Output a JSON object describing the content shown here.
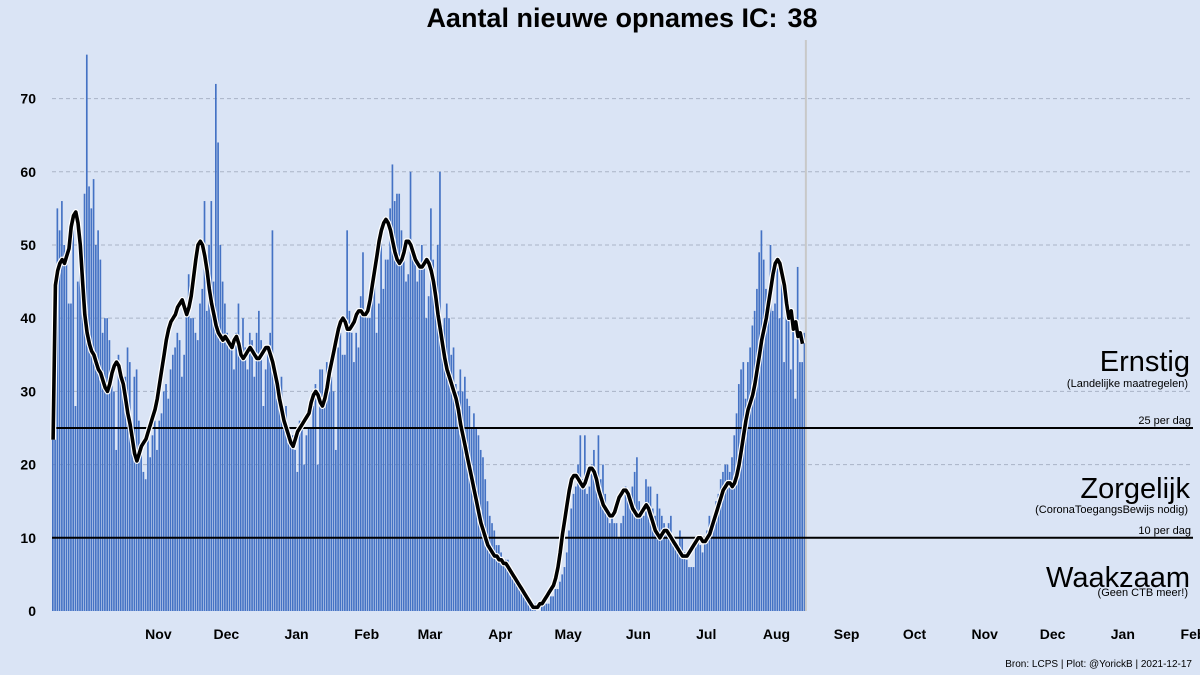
{
  "chart_data": {
    "type": "bar",
    "title_prefix": "Aantal nieuwe opnames IC:",
    "title_value": "38",
    "xlabel": "",
    "ylabel": "",
    "ylim": [
      0,
      78
    ],
    "yticks": [
      0,
      10,
      20,
      30,
      40,
      50,
      60,
      70
    ],
    "x_start_date": "2020-10-12",
    "x_end_date": "2022-02-28",
    "x_ticks": [
      {
        "label": "Nov",
        "day": 33
      },
      {
        "label": "Dec",
        "day": 63
      },
      {
        "label": "Jan",
        "day": 94
      },
      {
        "label": "Feb",
        "day": 125
      },
      {
        "label": "Mar",
        "day": 153
      },
      {
        "label": "Apr",
        "day": 184
      },
      {
        "label": "May",
        "day": 214
      },
      {
        "label": "Jun",
        "day": 245
      },
      {
        "label": "Jul",
        "day": 275
      },
      {
        "label": "Aug",
        "day": 306
      },
      {
        "label": "Sep",
        "day": 337
      },
      {
        "label": "Oct",
        "day": 367
      },
      {
        "label": "Nov",
        "day": 398
      },
      {
        "label": "Dec",
        "day": 428
      },
      {
        "label": "Jan",
        "day": 459
      },
      {
        "label": "Feb",
        "day": 490
      }
    ],
    "grid": true,
    "bar_color": "#4472c4",
    "line_color": "#000000",
    "series": [
      {
        "kind": "bar",
        "start_date": "2020-10-12",
        "values": [
          26,
          43,
          55,
          52,
          56,
          50,
          48,
          42,
          42,
          52,
          28,
          45,
          48,
          46,
          57,
          76,
          58,
          55,
          59,
          50,
          52,
          48,
          38,
          40,
          40,
          37,
          31,
          30,
          22,
          35,
          33,
          30,
          32,
          36,
          34,
          24,
          32,
          33,
          26,
          22,
          19,
          18,
          24,
          21,
          24,
          26,
          22,
          26,
          27,
          30,
          31,
          29,
          33,
          35,
          36,
          38,
          37,
          32,
          35,
          42,
          46,
          40,
          40,
          38,
          37,
          42,
          44,
          56,
          41,
          50,
          56,
          45,
          72,
          64,
          50,
          45,
          42,
          38,
          36,
          37,
          33,
          38,
          42,
          36,
          40,
          36,
          33,
          38,
          37,
          32,
          38,
          41,
          37,
          28,
          33,
          36,
          38,
          52,
          33,
          29,
          28,
          32,
          26,
          28,
          23,
          24,
          24,
          22,
          19,
          26,
          25,
          20,
          24,
          25,
          25,
          28,
          31,
          20,
          33,
          33,
          28,
          34,
          30,
          32,
          30,
          22,
          36,
          38,
          35,
          35,
          52,
          41,
          38,
          34,
          38,
          36,
          43,
          49,
          41,
          40,
          40,
          44,
          45,
          38,
          42,
          52,
          44,
          48,
          48,
          55,
          61,
          56,
          57,
          57,
          52,
          48,
          45,
          46,
          60,
          50,
          49,
          45,
          47,
          50,
          47,
          40,
          43,
          55,
          48,
          45,
          50,
          60,
          39,
          40,
          42,
          40,
          35,
          36,
          31,
          30,
          33,
          30,
          32,
          29,
          28,
          25,
          27,
          25,
          24,
          22,
          21,
          18,
          15,
          13,
          12,
          11,
          9,
          9,
          8,
          7,
          7,
          7,
          6,
          5,
          5,
          4,
          3,
          3,
          2,
          2,
          1,
          1,
          1,
          1,
          0,
          0,
          1,
          1,
          1,
          1,
          2,
          2,
          3,
          3,
          4,
          5,
          6,
          8,
          11,
          14,
          16,
          17,
          20,
          24,
          18,
          24,
          16,
          17,
          20,
          22,
          18,
          24,
          18,
          20,
          16,
          14,
          12,
          13,
          12,
          12,
          10,
          12,
          13,
          17,
          16,
          15,
          17,
          19,
          21,
          15,
          14,
          13,
          18,
          17,
          17,
          14,
          13,
          16,
          14,
          13,
          12,
          11,
          12,
          13,
          10,
          9,
          9,
          11,
          10,
          8,
          7,
          6,
          6,
          6,
          9,
          10,
          9,
          8,
          10,
          11,
          13,
          12,
          13,
          15,
          16,
          18,
          19,
          20,
          20,
          19,
          21,
          24,
          27,
          31,
          33,
          34,
          29,
          34,
          36,
          39,
          41,
          44,
          49,
          52,
          48,
          44,
          43,
          50,
          41,
          42,
          47,
          40,
          46,
          34,
          42,
          40,
          33,
          40,
          29,
          47,
          34,
          34,
          38
        ]
      },
      {
        "kind": "line",
        "name": "",
        "start_date": "2020-10-12",
        "values": [
          23.4,
          44.5,
          46.5,
          47.5,
          48.0,
          47.5,
          48.5,
          49.5,
          52.5,
          54.0,
          54.5,
          53.0,
          50.0,
          45.0,
          40.5,
          38.0,
          36.5,
          35.5,
          35.0,
          34.0,
          33.0,
          32.5,
          31.5,
          30.5,
          30.0,
          31.0,
          32.5,
          33.5,
          34.0,
          33.5,
          32.0,
          31.0,
          29.0,
          27.0,
          25.5,
          23.5,
          21.5,
          20.5,
          21.5,
          22.5,
          23.0,
          23.5,
          24.5,
          25.5,
          26.5,
          27.5,
          29.0,
          31.0,
          33.0,
          35.0,
          37.0,
          38.5,
          39.5,
          40.0,
          40.5,
          41.5,
          42.0,
          42.5,
          41.5,
          40.5,
          41.5,
          43.0,
          45.5,
          48.0,
          50.0,
          50.5,
          50.0,
          48.5,
          46.5,
          44.0,
          42.0,
          40.5,
          39.0,
          38.0,
          37.5,
          37.0,
          37.5,
          37.0,
          36.5,
          36.0,
          37.0,
          37.5,
          36.5,
          35.0,
          34.5,
          35.0,
          35.5,
          36.0,
          35.5,
          35.0,
          34.5,
          34.5,
          35.0,
          35.5,
          36.0,
          36.0,
          35.0,
          34.0,
          32.5,
          31.0,
          29.0,
          27.5,
          26.0,
          25.0,
          24.0,
          23.0,
          22.5,
          23.5,
          24.5,
          25.0,
          25.5,
          26.0,
          26.5,
          27.0,
          28.5,
          29.5,
          30.0,
          29.5,
          28.5,
          28.0,
          29.0,
          30.5,
          32.5,
          34.0,
          35.5,
          37.0,
          38.5,
          39.5,
          40.0,
          39.5,
          38.5,
          38.5,
          39.0,
          39.5,
          40.5,
          41.0,
          41.0,
          40.5,
          40.5,
          41.0,
          42.5,
          44.5,
          46.5,
          48.5,
          50.5,
          52.0,
          53.0,
          53.5,
          53.0,
          52.0,
          50.5,
          49.0,
          48.0,
          47.5,
          48.0,
          49.0,
          50.5,
          50.5,
          50.0,
          49.0,
          48.0,
          47.5,
          47.0,
          47.0,
          47.5,
          48.0,
          47.5,
          46.5,
          45.0,
          43.0,
          40.5,
          38.5,
          36.5,
          34.5,
          33.0,
          32.0,
          31.0,
          30.0,
          29.0,
          27.5,
          25.5,
          24.0,
          22.5,
          21.0,
          19.5,
          18.0,
          16.5,
          15.0,
          13.5,
          12.0,
          11.0,
          10.0,
          9.0,
          8.5,
          8.0,
          7.5,
          7.5,
          7.0,
          7.0,
          6.5,
          6.5,
          6.0,
          5.5,
          5.0,
          4.5,
          4.0,
          3.5,
          3.0,
          2.5,
          2.0,
          1.5,
          1.0,
          0.5,
          0.5,
          0.5,
          1.0,
          1.0,
          1.5,
          2.0,
          2.5,
          3.0,
          3.5,
          4.5,
          6.0,
          8.0,
          10.5,
          12.5,
          14.5,
          16.5,
          18.0,
          18.5,
          18.5,
          18.0,
          17.5,
          17.0,
          17.5,
          18.5,
          19.5,
          19.5,
          19.0,
          18.0,
          16.5,
          15.5,
          14.5,
          14.0,
          13.5,
          13.0,
          13.0,
          13.5,
          14.5,
          15.5,
          16.0,
          16.5,
          16.5,
          16.0,
          15.0,
          14.0,
          13.5,
          13.0,
          13.0,
          13.5,
          14.0,
          14.5,
          14.0,
          13.0,
          12.0,
          11.0,
          10.5,
          10.0,
          10.5,
          11.0,
          11.0,
          10.5,
          10.0,
          9.5,
          9.0,
          8.5,
          8.0,
          7.5,
          7.5,
          7.5,
          8.0,
          8.5,
          9.0,
          9.5,
          10.0,
          10.0,
          9.5,
          9.5,
          10.0,
          10.5,
          11.5,
          12.5,
          13.5,
          14.5,
          15.5,
          16.5,
          17.0,
          17.5,
          17.5,
          17.0,
          17.5,
          18.5,
          20.0,
          22.0,
          24.0,
          26.0,
          27.5,
          28.5,
          29.5,
          31.0,
          33.0,
          35.0,
          37.0,
          38.5,
          40.0,
          42.0,
          44.0,
          46.0,
          47.5,
          48.0,
          47.5,
          46.0,
          44.5,
          42.0,
          40.0,
          41.0,
          38.5,
          39.5,
          37.5,
          38.0,
          36.5
        ]
      }
    ],
    "thresholds": [
      {
        "value": 25,
        "label": "25 per dag"
      },
      {
        "value": 10,
        "label": "10 per dag"
      }
    ],
    "zones": [
      {
        "name": "Ernstig",
        "sub": "(Landelijke maatregelen)"
      },
      {
        "name": "Zorgelijk",
        "sub": "(CoronaToegangsBewijs nodig)"
      },
      {
        "name": "Waakzaam",
        "sub": "(Geen CTB meer!)"
      }
    ],
    "source": "Bron: LCPS | Plot: @YorickB |  2021-12-17"
  }
}
